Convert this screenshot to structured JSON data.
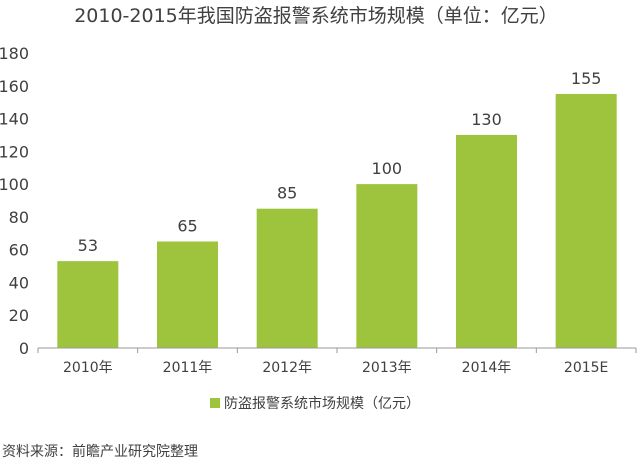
{
  "chart_data": {
    "type": "bar",
    "title": "2010-2015年我国防盗报警系统市场规模（单位：亿元）",
    "categories": [
      "2010年",
      "2011年",
      "2012年",
      "2013年",
      "2014年",
      "2015E"
    ],
    "series": [
      {
        "name": "防盗报警系统市场规模（亿元）",
        "values": [
          53,
          65,
          85,
          100,
          130,
          155
        ]
      }
    ],
    "data_labels": [
      "53",
      "65",
      "85",
      "100",
      "130",
      "155"
    ],
    "y_ticks": [
      0,
      20,
      40,
      60,
      80,
      100,
      120,
      140,
      160,
      180
    ],
    "ylim": [
      0,
      180
    ],
    "xlabel": "",
    "ylabel": "",
    "grid": false,
    "legend_position": "bottom"
  },
  "colors": {
    "bar": "#9dc43c",
    "text": "#404040",
    "axis": "#999999"
  },
  "source": "资料来源：前瞻产业研究院整理"
}
